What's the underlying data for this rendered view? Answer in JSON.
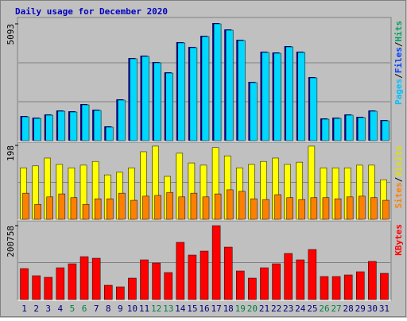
{
  "chart_data": [
    {
      "type": "bar",
      "title": "Daily usage for December 2020",
      "title_color": "#0000c0",
      "ylim": [
        0,
        5093
      ],
      "yticks": [
        5093
      ],
      "legend": [
        {
          "label": "Pages",
          "color": "#00c0ff"
        },
        {
          "label": "Files",
          "color": "#0040ff"
        },
        {
          "label": "Hits",
          "color": "#00a060"
        }
      ],
      "legend_separator": "/",
      "series": [
        {
          "name": "Hits",
          "color": "#00d8ff",
          "values": [
            1039,
            970,
            1109,
            1282,
            1247,
            1559,
            1317,
            589,
            1767,
            3569,
            3673,
            3395,
            2945,
            4262,
            4054,
            4539,
            5093,
            4816,
            4365,
            2529,
            3846,
            3811,
            4088,
            3846,
            2737,
            935,
            970,
            1109,
            1005,
            1282,
            866
          ]
        }
      ]
    },
    {
      "type": "bar",
      "ylim": [
        0,
        198
      ],
      "yticks": [
        198
      ],
      "legend": [
        {
          "label": "Sites",
          "color": "#ff8000"
        },
        {
          "label": "Visits",
          "color": "#e0e000"
        }
      ],
      "legend_separator": "/",
      "series": [
        {
          "name": "Visits",
          "color": "#ffff00",
          "values": [
            138,
            143,
            164,
            147,
            138,
            145,
            155,
            119,
            126,
            138,
            181,
            196,
            115,
            177,
            151,
            145,
            192,
            170,
            138,
            147,
            155,
            164,
            147,
            153,
            196,
            138,
            138,
            138,
            145,
            145,
            106
          ]
        },
        {
          "name": "Sites",
          "color": "#ff8000",
          "values": [
            70,
            40,
            60,
            68,
            58,
            40,
            55,
            55,
            70,
            51,
            62,
            64,
            72,
            60,
            70,
            60,
            68,
            79,
            75,
            55,
            53,
            66,
            58,
            53,
            58,
            58,
            55,
            60,
            62,
            58,
            51
          ]
        }
      ]
    },
    {
      "type": "bar",
      "ylim": [
        0,
        200758
      ],
      "yticks": [
        200758
      ],
      "legend": [
        {
          "label": "KBytes",
          "color": "#ff0000"
        }
      ],
      "categories": [
        "1",
        "2",
        "3",
        "4",
        "5",
        "6",
        "7",
        "8",
        "9",
        "10",
        "11",
        "12",
        "13",
        "14",
        "15",
        "16",
        "17",
        "18",
        "19",
        "20",
        "21",
        "22",
        "23",
        "24",
        "25",
        "26",
        "27",
        "28",
        "29",
        "30",
        "31"
      ],
      "category_colors": [
        "#000080",
        "#000080",
        "#000080",
        "#000080",
        "#008040",
        "#008040",
        "#000080",
        "#000080",
        "#000080",
        "#000080",
        "#000080",
        "#008040",
        "#008040",
        "#000080",
        "#000080",
        "#000080",
        "#000080",
        "#000080",
        "#008040",
        "#008040",
        "#000080",
        "#000080",
        "#000080",
        "#000080",
        "#000080",
        "#008040",
        "#008040",
        "#000080",
        "#000080",
        "#000080",
        "#000080"
      ],
      "series": [
        {
          "name": "KBytes",
          "color": "#ff0000",
          "values": [
            84189,
            64761,
            60444,
            86348,
            97142,
            116570,
            112253,
            38857,
            34539,
            58285,
            107935,
            99300,
            73396,
            155426,
            120887,
            131681,
            200758,
            142474,
            77713,
            58285,
            86348,
            97142,
            125204,
            107935,
            135998,
            62602,
            62602,
            66920,
            75554,
            103617,
            71237
          ]
        }
      ]
    }
  ]
}
